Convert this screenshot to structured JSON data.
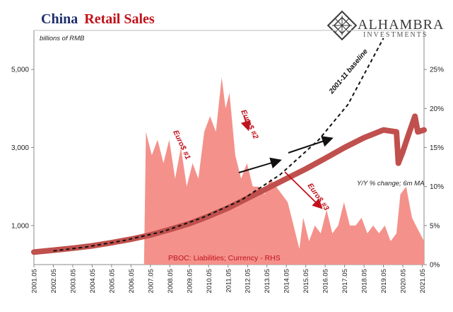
{
  "title": {
    "part1": "China",
    "part2": "Retail Sales"
  },
  "logo": {
    "name": "ALHAMBRA",
    "subtitle": "INVESTMENTS"
  },
  "colors": {
    "navy": "#1f2f6b",
    "red": "#c0121b",
    "sales": "#c0504d",
    "area": "#f4918b"
  },
  "chart_data": {
    "type": "line",
    "left_axis": {
      "label": "billions of RMB",
      "ticks": [
        "1,000",
        "3,000",
        "5,000"
      ],
      "range": [
        0,
        6000
      ],
      "scale": "linear"
    },
    "right_axis": {
      "label": "Y/Y % change; 6m MA",
      "ticks": [
        "0%",
        "5%",
        "10%",
        "15%",
        "20%",
        "25%"
      ],
      "range": [
        0,
        30
      ]
    },
    "x_ticks": [
      "2001.05",
      "2002.05",
      "2003.05",
      "2004.05",
      "2005.05",
      "2006.05",
      "2007.05",
      "2008.05",
      "2009.05",
      "2010.05",
      "2011.05",
      "2012.05",
      "2013.05",
      "2014.05",
      "2015.05",
      "2016.05",
      "2017.05",
      "2018.05",
      "2019.05",
      "2020.05",
      "2021.05"
    ],
    "x_range": [
      2001.33,
      2021.42
    ],
    "grid": false,
    "series": [
      {
        "kind": "line",
        "axis": "left",
        "color": "#c0504d",
        "points": [
          [
            2001.33,
            320
          ],
          [
            2002.33,
            370
          ],
          [
            2003.33,
            420
          ],
          [
            2004.33,
            480
          ],
          [
            2005.33,
            560
          ],
          [
            2006.33,
            650
          ],
          [
            2007.33,
            760
          ],
          [
            2008.33,
            900
          ],
          [
            2009.33,
            1050
          ],
          [
            2010.33,
            1240
          ],
          [
            2011.33,
            1450
          ],
          [
            2012.33,
            1700
          ],
          [
            2013.33,
            1950
          ],
          [
            2014.33,
            2200
          ],
          [
            2015.33,
            2450
          ],
          [
            2016.33,
            2720
          ],
          [
            2017.33,
            3000
          ],
          [
            2018.33,
            3250
          ],
          [
            2019.33,
            3450
          ],
          [
            2020.0,
            3400
          ],
          [
            2020.1,
            2600
          ],
          [
            2020.33,
            2900
          ],
          [
            2020.6,
            3300
          ],
          [
            2020.95,
            3800
          ],
          [
            2021.1,
            3400
          ],
          [
            2021.42,
            3450
          ]
        ]
      },
      {
        "kind": "area",
        "name": "PBOC: Liabilities; Currency - RHS",
        "axis": "right",
        "color": "#f4918b",
        "points": [
          [
            2007.0,
            0
          ],
          [
            2007.1,
            17
          ],
          [
            2007.4,
            14
          ],
          [
            2007.7,
            16
          ],
          [
            2008.0,
            13
          ],
          [
            2008.3,
            16
          ],
          [
            2008.6,
            11
          ],
          [
            2008.9,
            15
          ],
          [
            2009.2,
            10
          ],
          [
            2009.5,
            13
          ],
          [
            2009.8,
            11
          ],
          [
            2010.1,
            17
          ],
          [
            2010.4,
            19
          ],
          [
            2010.7,
            17
          ],
          [
            2011.0,
            24
          ],
          [
            2011.2,
            20
          ],
          [
            2011.4,
            22
          ],
          [
            2011.7,
            14
          ],
          [
            2012.0,
            11
          ],
          [
            2012.3,
            13
          ],
          [
            2012.6,
            10
          ],
          [
            2012.9,
            10
          ],
          [
            2013.2,
            9
          ],
          [
            2013.5,
            11
          ],
          [
            2013.8,
            10
          ],
          [
            2014.1,
            9
          ],
          [
            2014.4,
            8
          ],
          [
            2014.7,
            5
          ],
          [
            2015.0,
            2
          ],
          [
            2015.2,
            6
          ],
          [
            2015.5,
            3
          ],
          [
            2015.8,
            5
          ],
          [
            2016.1,
            4
          ],
          [
            2016.4,
            7
          ],
          [
            2016.7,
            4
          ],
          [
            2017.0,
            5
          ],
          [
            2017.3,
            8
          ],
          [
            2017.6,
            5
          ],
          [
            2017.9,
            5
          ],
          [
            2018.2,
            6
          ],
          [
            2018.5,
            4
          ],
          [
            2018.8,
            5
          ],
          [
            2019.1,
            4
          ],
          [
            2019.4,
            5
          ],
          [
            2019.7,
            3
          ],
          [
            2020.0,
            4
          ],
          [
            2020.2,
            9
          ],
          [
            2020.5,
            10
          ],
          [
            2020.8,
            6
          ],
          [
            2021.0,
            5
          ],
          [
            2021.42,
            3
          ]
        ]
      },
      {
        "kind": "dashed",
        "label": "2001-11 baseline",
        "axis": "left",
        "points": [
          [
            2002.33,
            350
          ],
          [
            2004.0,
            450
          ],
          [
            2006.0,
            620
          ],
          [
            2008.0,
            850
          ],
          [
            2010.0,
            1200
          ],
          [
            2012.0,
            1650
          ],
          [
            2014.0,
            2300
          ],
          [
            2016.0,
            3200
          ],
          [
            2017.5,
            4100
          ],
          [
            2019.33,
            5800
          ]
        ]
      }
    ],
    "annotations": [
      {
        "text": "Euro$ #1"
      },
      {
        "text": "Euro$ #2"
      },
      {
        "text": "Euro$ #3"
      }
    ]
  }
}
